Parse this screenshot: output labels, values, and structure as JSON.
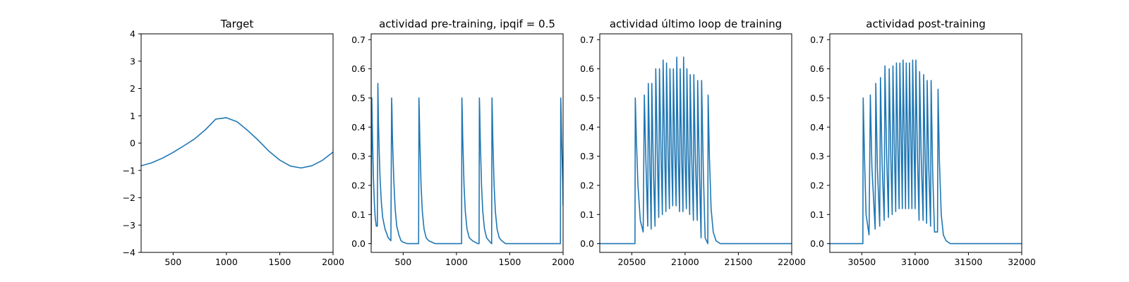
{
  "figure": {
    "background": "#ffffff",
    "line_color": "#1f77b4"
  },
  "chart_data": [
    {
      "type": "line",
      "title": "Target",
      "xlabel": "",
      "ylabel": "",
      "xlim": [
        200,
        2000
      ],
      "ylim": [
        -4,
        4
      ],
      "xticks": [
        500,
        1000,
        1500,
        2000
      ],
      "yticks": [
        -4,
        -3,
        -2,
        -1,
        0,
        1,
        2,
        3,
        4
      ],
      "grid": false,
      "series": [
        {
          "x": [
            200,
            300,
            400,
            500,
            600,
            700,
            800,
            900,
            1000,
            1100,
            1200,
            1300,
            1400,
            1500,
            1600,
            1700,
            1800,
            1900,
            2000
          ],
          "y": [
            -0.83,
            -0.72,
            -0.55,
            -0.34,
            -0.1,
            0.15,
            0.48,
            0.88,
            0.93,
            0.78,
            0.46,
            0.1,
            -0.3,
            -0.62,
            -0.84,
            -0.91,
            -0.83,
            -0.63,
            -0.33
          ]
        }
      ]
    },
    {
      "type": "line",
      "title": "actividad pre-training, ipqif = 0.5",
      "xlabel": "",
      "ylabel": "",
      "xlim": [
        200,
        2000
      ],
      "ylim": [
        -0.03,
        0.72
      ],
      "xticks": [
        500,
        1000,
        1500,
        2000
      ],
      "yticks": [
        0.0,
        0.1,
        0.2,
        0.3,
        0.4,
        0.5,
        0.6,
        0.7
      ],
      "grid": false,
      "series": [
        {
          "x": [
            200,
            206,
            210,
            214,
            222,
            230,
            238,
            248,
            258,
            263,
            265,
            268,
            276,
            284,
            296,
            308,
            330,
            360,
            385,
            392,
            395,
            400,
            412,
            425,
            440,
            460,
            480,
            500,
            540,
            600,
            645,
            648,
            651,
            656,
            668,
            680,
            696,
            716,
            740,
            800,
            900,
            1000,
            1048,
            1051,
            1054,
            1059,
            1071,
            1083,
            1099,
            1120,
            1150,
            1200,
            1212,
            1215,
            1218,
            1223,
            1235,
            1247,
            1263,
            1283,
            1305,
            1330,
            1333,
            1336,
            1341,
            1353,
            1365,
            1381,
            1401,
            1425,
            1460,
            1550,
            1700,
            1900,
            1975,
            1978,
            1981,
            1986,
            1998,
            2000
          ],
          "y": [
            0.0,
            0.5,
            0.42,
            0.34,
            0.22,
            0.14,
            0.09,
            0.06,
            0.06,
            0.55,
            0.5,
            0.42,
            0.31,
            0.22,
            0.14,
            0.09,
            0.05,
            0.02,
            0.01,
            0.5,
            0.46,
            0.36,
            0.22,
            0.12,
            0.06,
            0.03,
            0.01,
            0.005,
            0.0,
            0.0,
            0.0,
            0.5,
            0.46,
            0.36,
            0.2,
            0.11,
            0.05,
            0.02,
            0.01,
            0.0,
            0.0,
            0.0,
            0.0,
            0.5,
            0.46,
            0.36,
            0.2,
            0.11,
            0.05,
            0.02,
            0.01,
            0.0,
            0.0,
            0.5,
            0.46,
            0.36,
            0.2,
            0.11,
            0.05,
            0.02,
            0.01,
            0.0,
            0.5,
            0.46,
            0.36,
            0.2,
            0.11,
            0.05,
            0.02,
            0.01,
            0.0,
            0.0,
            0.0,
            0.0,
            0.0,
            0.5,
            0.46,
            0.36,
            0.2,
            0.13
          ]
        }
      ]
    },
    {
      "type": "line",
      "title": "actividad último loop de training",
      "xlabel": "",
      "ylabel": "",
      "xlim": [
        20200,
        22000
      ],
      "ylim": [
        -0.03,
        0.72
      ],
      "xticks": [
        20500,
        21000,
        21500,
        22000
      ],
      "yticks": [
        0.0,
        0.1,
        0.2,
        0.3,
        0.4,
        0.5,
        0.6,
        0.7
      ],
      "grid": false,
      "series": [
        {
          "x": [
            20200,
            20530,
            20533,
            20543,
            20558,
            20580,
            20607,
            20618,
            20631,
            20650,
            20655,
            20671,
            20682,
            20688,
            20703,
            20718,
            20725,
            20740,
            20753,
            20760,
            20775,
            20787,
            20794,
            20809,
            20820,
            20826,
            20841,
            20853,
            20858,
            20873,
            20884,
            20890,
            20905,
            20916,
            20922,
            20936,
            20948,
            20954,
            20968,
            20980,
            20986,
            20999,
            21012,
            21017,
            21030,
            21043,
            21048,
            21062,
            21078,
            21082,
            21096,
            21114,
            21118,
            21134,
            21150,
            21155,
            21171,
            21188,
            21213,
            21216,
            21228,
            21244,
            21264,
            21290,
            21330,
            21400,
            21500,
            22000
          ],
          "y": [
            0.0,
            0.0,
            0.5,
            0.36,
            0.2,
            0.08,
            0.04,
            0.51,
            0.3,
            0.06,
            0.55,
            0.25,
            0.05,
            0.55,
            0.25,
            0.06,
            0.6,
            0.3,
            0.09,
            0.6,
            0.3,
            0.1,
            0.63,
            0.3,
            0.11,
            0.62,
            0.3,
            0.12,
            0.6,
            0.3,
            0.13,
            0.6,
            0.3,
            0.13,
            0.64,
            0.3,
            0.11,
            0.6,
            0.3,
            0.11,
            0.64,
            0.3,
            0.12,
            0.6,
            0.3,
            0.1,
            0.58,
            0.3,
            0.08,
            0.58,
            0.3,
            0.08,
            0.56,
            0.25,
            0.02,
            0.56,
            0.25,
            0.02,
            0.0,
            0.51,
            0.3,
            0.12,
            0.04,
            0.01,
            0.0,
            0.0,
            0.0,
            0.0
          ]
        }
      ]
    },
    {
      "type": "line",
      "title": "actividad post-training",
      "xlabel": "",
      "ylabel": "",
      "xlim": [
        30200,
        32000
      ],
      "ylim": [
        -0.03,
        0.72
      ],
      "xticks": [
        30500,
        31000,
        31500,
        32000
      ],
      "yticks": [
        0.0,
        0.1,
        0.2,
        0.3,
        0.4,
        0.5,
        0.6,
        0.7
      ],
      "grid": false,
      "series": [
        {
          "x": [
            30200,
            30510,
            30513,
            30525,
            30540,
            30568,
            30580,
            30595,
            30625,
            30631,
            30646,
            30668,
            30675,
            30690,
            30710,
            30717,
            30733,
            30750,
            30757,
            30772,
            30785,
            30792,
            30807,
            30818,
            30825,
            30840,
            30850,
            30857,
            30872,
            30880,
            30887,
            30902,
            30910,
            30917,
            30932,
            30940,
            30947,
            30962,
            30970,
            30977,
            30992,
            31000,
            31007,
            31022,
            31037,
            31042,
            31057,
            31075,
            31080,
            31095,
            31108,
            31113,
            31128,
            31145,
            31150,
            31165,
            31182,
            31210,
            31215,
            31228,
            31245,
            31265,
            31290,
            31330,
            31400,
            31500,
            32000
          ],
          "y": [
            0.0,
            0.0,
            0.5,
            0.3,
            0.1,
            0.03,
            0.51,
            0.26,
            0.05,
            0.55,
            0.26,
            0.06,
            0.57,
            0.28,
            0.08,
            0.61,
            0.3,
            0.09,
            0.6,
            0.3,
            0.1,
            0.61,
            0.3,
            0.11,
            0.62,
            0.3,
            0.12,
            0.62,
            0.3,
            0.12,
            0.63,
            0.3,
            0.12,
            0.62,
            0.3,
            0.12,
            0.62,
            0.3,
            0.12,
            0.63,
            0.3,
            0.12,
            0.63,
            0.3,
            0.08,
            0.59,
            0.3,
            0.08,
            0.58,
            0.28,
            0.07,
            0.56,
            0.26,
            0.06,
            0.56,
            0.24,
            0.04,
            0.04,
            0.53,
            0.28,
            0.1,
            0.03,
            0.01,
            0.0,
            0.0,
            0.0,
            0.0
          ]
        }
      ]
    }
  ]
}
